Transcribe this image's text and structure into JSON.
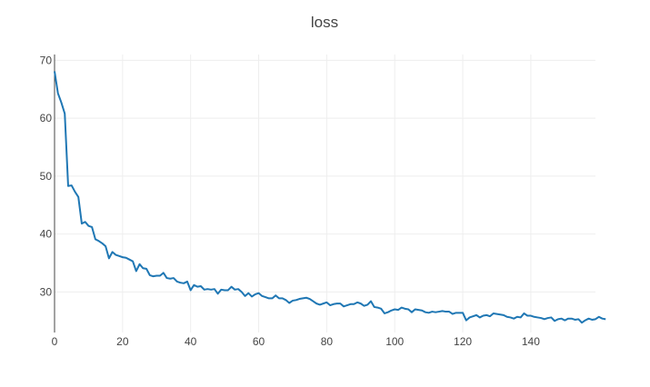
{
  "chart_data": {
    "type": "line",
    "title": "loss",
    "xlabel": "",
    "ylabel": "",
    "xlim": [
      0,
      159
    ],
    "ylim": [
      23,
      71
    ],
    "xticks": [
      0,
      20,
      40,
      60,
      80,
      100,
      120,
      140
    ],
    "yticks": [
      30,
      40,
      50,
      60,
      70
    ],
    "grid": true,
    "line_color": "#1f77b4",
    "series": [
      {
        "values": [
          68.1,
          64.3,
          62.7,
          60.8,
          48.3,
          48.4,
          47.3,
          46.4,
          41.8,
          42.1,
          41.4,
          41.2,
          39.1,
          38.8,
          38.4,
          37.9,
          35.8,
          36.9,
          36.4,
          36.2,
          36.0,
          35.9,
          35.6,
          35.3,
          33.6,
          34.8,
          34.1,
          34.0,
          32.9,
          32.7,
          32.8,
          32.8,
          33.3,
          32.4,
          32.3,
          32.4,
          31.8,
          31.6,
          31.5,
          31.8,
          30.3,
          31.2,
          30.9,
          31.0,
          30.4,
          30.5,
          30.4,
          30.5,
          29.7,
          30.4,
          30.3,
          30.3,
          30.9,
          30.4,
          30.5,
          30.0,
          29.3,
          29.8,
          29.2,
          29.6,
          29.8,
          29.3,
          29.1,
          28.9,
          28.9,
          29.4,
          28.9,
          28.9,
          28.6,
          28.1,
          28.5,
          28.6,
          28.8,
          28.9,
          29.0,
          28.8,
          28.4,
          28.0,
          27.8,
          28.0,
          28.2,
          27.7,
          27.9,
          28.0,
          28.0,
          27.5,
          27.7,
          27.9,
          27.9,
          28.2,
          28.0,
          27.6,
          27.8,
          28.4,
          27.4,
          27.3,
          27.1,
          26.3,
          26.5,
          26.8,
          27.0,
          26.9,
          27.3,
          27.1,
          27.0,
          26.5,
          27.0,
          26.9,
          26.8,
          26.5,
          26.4,
          26.6,
          26.5,
          26.6,
          26.7,
          26.6,
          26.6,
          26.2,
          26.4,
          26.4,
          26.4,
          25.1,
          25.6,
          25.8,
          26.0,
          25.6,
          25.9,
          26.0,
          25.8,
          26.3,
          26.2,
          26.1,
          26.0,
          25.7,
          25.6,
          25.4,
          25.7,
          25.6,
          26.3,
          25.9,
          25.9,
          25.7,
          25.6,
          25.5,
          25.3,
          25.5,
          25.6,
          25.0,
          25.3,
          25.4,
          25.1,
          25.4,
          25.4,
          25.2,
          25.3,
          24.7,
          25.1,
          25.4,
          25.2,
          25.3,
          25.7,
          25.4,
          25.3
        ]
      }
    ]
  }
}
